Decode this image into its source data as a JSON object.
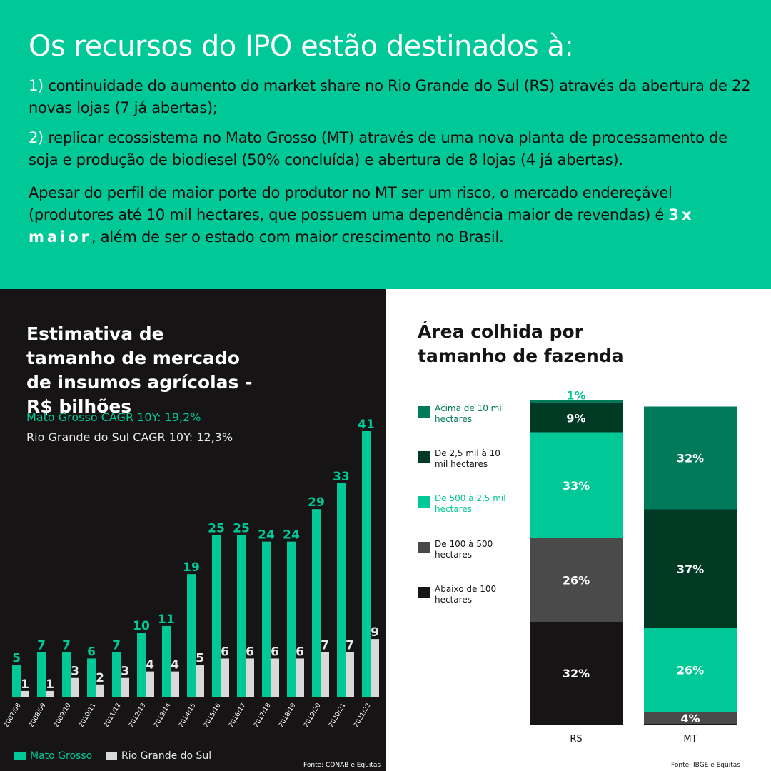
{
  "header": {
    "title": "Os recursos do IPO estão destinados à:",
    "item1_num": "1)",
    "item1_text": " continuidade do aumento do market share no Rio Grande do Sul (RS) através da abertura de 22 novas lojas (7 já abertas);",
    "item2_num": "2)",
    "item2_text": " replicar ecossistema no Mato Grosso (MT) através de uma nova planta de processamento de soja e produção de biodiesel (50% concluída) e abertura de 8 lojas (4 já abertas).",
    "para3_a": "Apesar do perfil de maior porte do produtor no MT ser um risco, o mercado endereçável (produtores até 10 mil hectares, que possuem uma dependência maior de revendas) é ",
    "para3_emph": "3x maior",
    "para3_b": ", além de ser o estado com maior crescimento no Brasil."
  },
  "colors": {
    "accent": "#00c896",
    "dark_bg": "#161415",
    "light_bar": "#d9d9d9",
    "dark_green": "#007a5a",
    "darkest_green": "#003a25",
    "gray": "#4a4a4a",
    "black": "#161415"
  },
  "left_panel": {
    "cagr_mt": "Mato Grosso CAGR 10Y: 19,2%",
    "cagr_rs": "Rio Grande do Sul CAGR 10Y: 12,3%",
    "legend_mt": "Mato Grosso",
    "legend_rs": "Rio Grande do Sul",
    "source": "Fonte: CONAB e Equitas"
  },
  "right_panel": {
    "source": "Fonte: IBGE e Equitas"
  },
  "chart_data": [
    {
      "type": "bar",
      "title": "Estimativa de tamanho de mercado de insumos agrícolas - R$ bilhões",
      "categories": [
        "2007/08",
        "2008/09",
        "2009/10",
        "2010/11",
        "2011/12",
        "2012/13",
        "2013/14",
        "2014/15",
        "2015/16",
        "2016/17",
        "2017/18",
        "2018/19",
        "2019/20",
        "2020/21",
        "2021/22"
      ],
      "series": [
        {
          "name": "Mato Grosso",
          "color": "#00c896",
          "values": [
            5,
            7,
            7,
            6,
            7,
            10,
            11,
            19,
            25,
            25,
            24,
            24,
            29,
            33,
            41
          ]
        },
        {
          "name": "Rio Grande do Sul",
          "color": "#d9d9d9",
          "values": [
            1,
            1,
            3,
            2,
            3,
            4,
            4,
            5,
            6,
            6,
            6,
            6,
            7,
            7,
            9
          ]
        }
      ],
      "ylim": [
        0,
        41
      ]
    },
    {
      "type": "bar",
      "stacked": true,
      "title": "Área colhida por tamanho de fazenda",
      "categories": [
        "RS",
        "MT"
      ],
      "series": [
        {
          "name": "Abaixo de 100 hectares",
          "color": "#161415",
          "label_color": "#ffffff",
          "values": [
            32,
            0
          ]
        },
        {
          "name": "De 100 à 500 hectares",
          "color": "#4a4a4a",
          "label_color": "#ffffff",
          "values": [
            26,
            4
          ]
        },
        {
          "name": "De 500 à 2,5 mil hectares",
          "color": "#00c896",
          "label_color": "#ffffff",
          "values": [
            33,
            26
          ]
        },
        {
          "name": "De 2,5 mil à 10 mil hectares",
          "color": "#003a25",
          "label_color": "#ffffff",
          "values": [
            9,
            37
          ]
        },
        {
          "name": "Acima de 10 mil hectares",
          "color": "#007a5a",
          "label_color": "#ffffff",
          "values": [
            1,
            32
          ]
        }
      ],
      "legend_order": [
        "Acima de 10 mil hectares",
        "De 2,5 mil à 10 mil hectares",
        "De 500 à 2,5 mil hectares",
        "De 100 à 500 hectares",
        "Abaixo de 100 hectares"
      ],
      "ylim": [
        0,
        100
      ]
    }
  ]
}
